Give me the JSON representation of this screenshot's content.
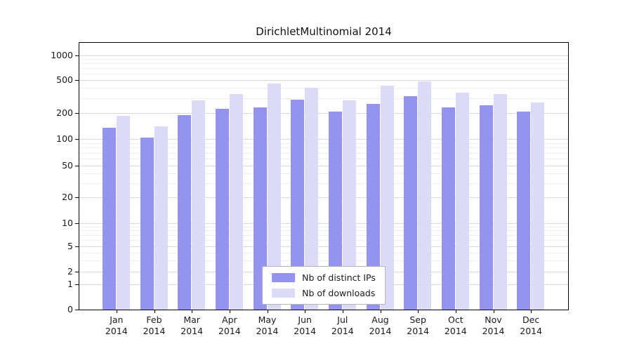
{
  "chart_data": {
    "type": "bar",
    "title": "DirichletMultinomial 2014",
    "categories": [
      "Jan 2014",
      "Feb 2014",
      "Mar 2014",
      "Apr 2014",
      "May 2014",
      "Jun 2014",
      "Jul 2014",
      "Aug 2014",
      "Sep 2014",
      "Oct 2014",
      "Nov 2014",
      "Dec 2014"
    ],
    "x_tick_line1": [
      "Jan",
      "Feb",
      "Mar",
      "Apr",
      "May",
      "Jun",
      "Jul",
      "Aug",
      "Sep",
      "Oct",
      "Nov",
      "Dec"
    ],
    "x_tick_line2": "2014",
    "series": [
      {
        "name": "Nb of distinct IPs",
        "color": "#9494ee",
        "values": [
          135,
          105,
          190,
          225,
          235,
          290,
          210,
          260,
          320,
          235,
          250,
          210
        ]
      },
      {
        "name": "Nb of downloads",
        "color": "#dbdbf8",
        "values": [
          185,
          140,
          285,
          340,
          450,
          400,
          285,
          430,
          480,
          355,
          340,
          270
        ]
      }
    ],
    "y_ticks": [
      0,
      1,
      2,
      5,
      10,
      20,
      50,
      100,
      200,
      500,
      1000
    ],
    "y_scale": "symlog",
    "ylim": [
      0,
      1200
    ],
    "xlabel": "",
    "ylabel": "",
    "grid": true,
    "legend_position": "lower center inside"
  },
  "colors": {
    "grid_major": "#d9d9d9",
    "grid_minor": "#eeeeee",
    "axis": "#000000",
    "background": "#ffffff"
  }
}
